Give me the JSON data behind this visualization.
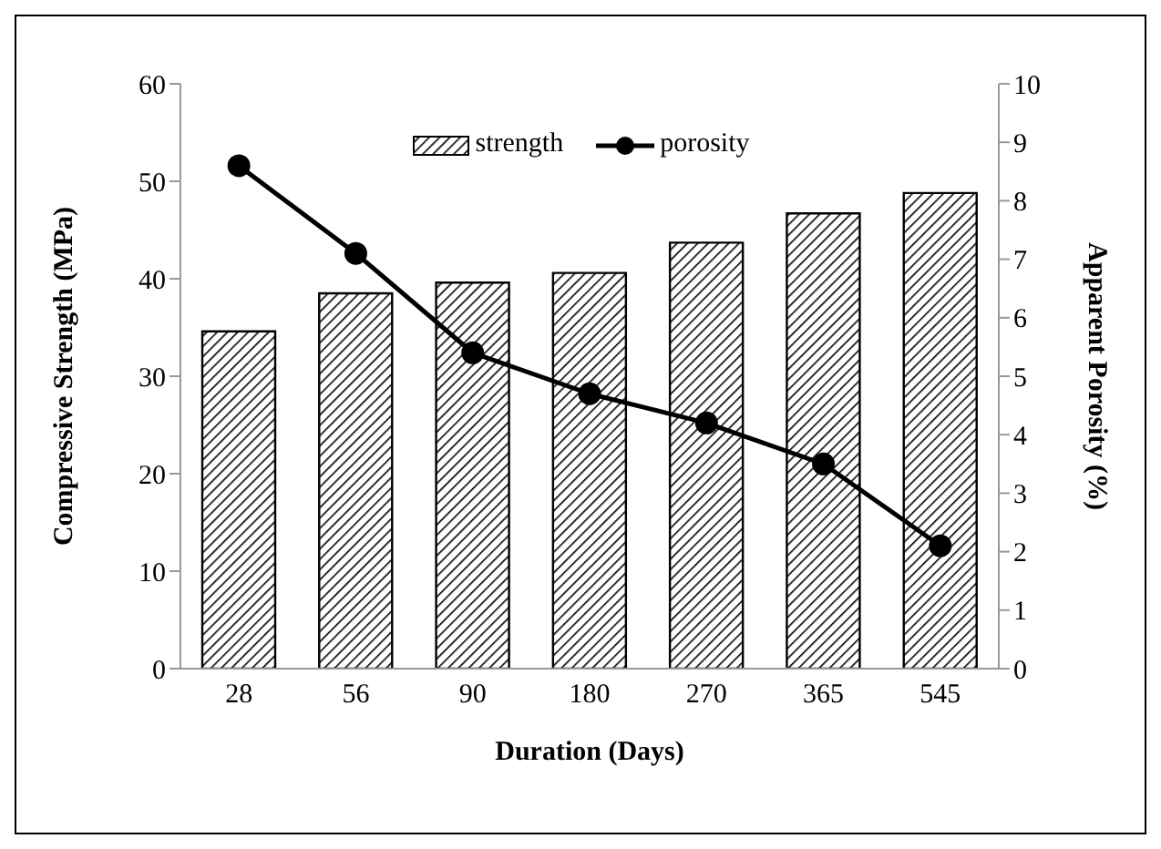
{
  "chart_data": {
    "type": "bar",
    "xlabel": "Duration (Days)",
    "ylabel": "Compressive Strength (MPa)",
    "y2label": "Apparent Porosity (%)",
    "categories": [
      "28",
      "56",
      "90",
      "180",
      "270",
      "365",
      "545"
    ],
    "series": [
      {
        "name": "strength",
        "color": "#000000",
        "values": [
          34.6,
          38.5,
          39.6,
          40.6,
          43.7,
          46.7,
          48.8
        ]
      },
      {
        "name": "porosity",
        "type": "line",
        "axis": "y2",
        "color": "#000000",
        "marker": "circle",
        "values": [
          8.6,
          7.1,
          5.4,
          4.7,
          4.2,
          3.5,
          2.1
        ]
      }
    ],
    "ylim": [
      0,
      60
    ],
    "yticks": [
      0,
      10,
      20,
      30,
      40,
      50,
      60
    ],
    "y2lim": [
      0,
      10
    ],
    "y2ticks": [
      0,
      1,
      2,
      3,
      4,
      5,
      6,
      7,
      8,
      9,
      10
    ],
    "grid": false,
    "legend": "top"
  }
}
